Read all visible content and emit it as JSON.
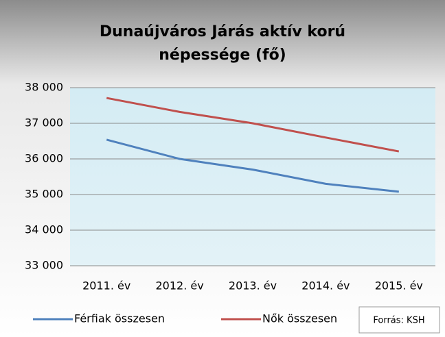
{
  "chart_data": {
    "type": "line",
    "title": "Dunaújváros Járás aktív korú népessége (fő)",
    "categories": [
      "2011. év",
      "2012. év",
      "2013. év",
      "2014. év",
      "2015. év"
    ],
    "series": [
      {
        "name": "Férfiak összesen",
        "color": "#4f81bd",
        "values": [
          36540,
          36000,
          35700,
          35300,
          35080
        ]
      },
      {
        "name": "Nők összesen",
        "color": "#c0504d",
        "values": [
          37710,
          37320,
          37000,
          36600,
          36210
        ]
      }
    ],
    "ylim": [
      33000,
      38000
    ],
    "yticks": [
      {
        "value": 33000,
        "label": "33 000"
      },
      {
        "value": 34000,
        "label": "34 000"
      },
      {
        "value": 35000,
        "label": "35 000"
      },
      {
        "value": 36000,
        "label": "36 000"
      },
      {
        "value": 37000,
        "label": "37 000"
      },
      {
        "value": 38000,
        "label": "38 000"
      }
    ],
    "grid": true,
    "legend": "bottom",
    "annotation": "Forrás: KSH"
  }
}
